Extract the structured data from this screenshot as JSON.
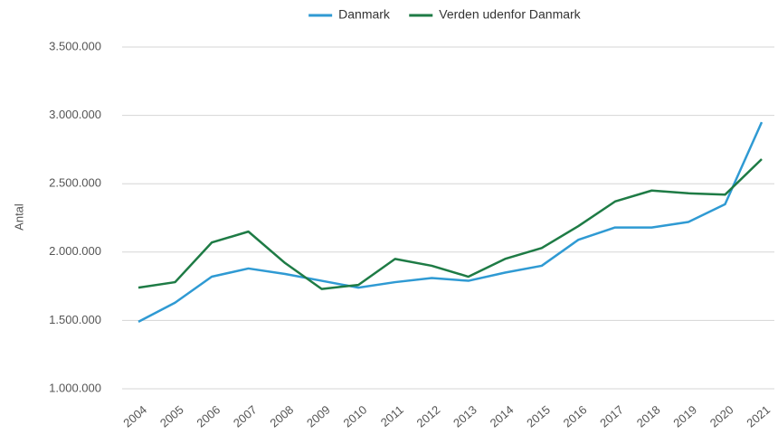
{
  "chart_data": {
    "type": "line",
    "y_label": "Antal",
    "categories": [
      "2004",
      "2005",
      "2006",
      "2007",
      "2008",
      "2009",
      "2010",
      "2011",
      "2012",
      "2013",
      "2014",
      "2015",
      "2016",
      "2017",
      "2018",
      "2019",
      "2020",
      "2021"
    ],
    "series": [
      {
        "name": "Danmark",
        "color": "#2f9ad3",
        "values": [
          1490000,
          1630000,
          1820000,
          1880000,
          1840000,
          1790000,
          1740000,
          1780000,
          1810000,
          1790000,
          1850000,
          1900000,
          2090000,
          2180000,
          2180000,
          2220000,
          2350000,
          2950000
        ]
      },
      {
        "name": "Verden udenfor Danmark",
        "color": "#1e7b45",
        "values": [
          1740000,
          1780000,
          2070000,
          2150000,
          1920000,
          1730000,
          1760000,
          1950000,
          1900000,
          1820000,
          1950000,
          2030000,
          2190000,
          2370000,
          2450000,
          2430000,
          2420000,
          2680000
        ]
      }
    ],
    "ylim": [
      1000000,
      3500000
    ],
    "yticks": [
      {
        "value": 1000000,
        "label": "1.000.000"
      },
      {
        "value": 1500000,
        "label": "1.500.000"
      },
      {
        "value": 2000000,
        "label": "2.000.000"
      },
      {
        "value": 2500000,
        "label": "2.500.000"
      },
      {
        "value": 3000000,
        "label": "3.000.000"
      },
      {
        "value": 3500000,
        "label": "3.500.000"
      }
    ],
    "grid": true,
    "legend": "top"
  }
}
